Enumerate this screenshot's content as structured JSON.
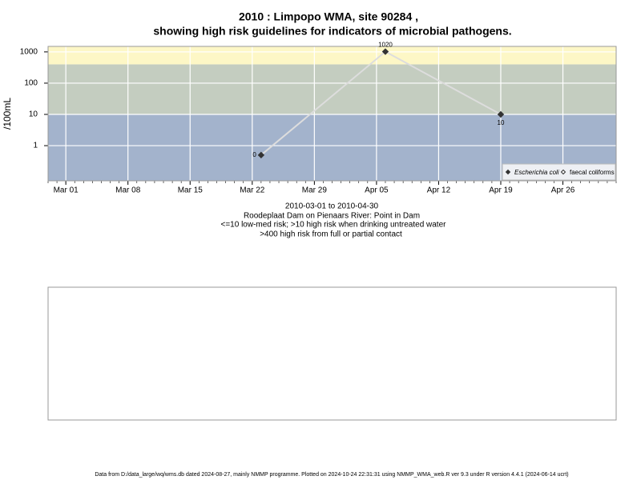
{
  "chart_data": {
    "type": "line",
    "title": "2010 : Limpopo WMA, site 90284 ,",
    "title_line2": "showing high risk guidelines for indicators of microbial pathogens.",
    "y_label": "/100mL",
    "subtitle": [
      "2010-03-01 to 2010-04-30",
      "Roodeplaat Dam on Pienaars River: Point in Dam",
      "<=10 low-med risk; >10 high risk when drinking untreated water",
      ">400 high risk from full or partial contact"
    ],
    "footer": "Data from D:/data_large/wq/wms.db dated 2024-08-27, mainly NMMP programme. Plotted on 2024-10-24 22:31:31 using NMMP_WMA_web.R ver 9.3 under R version 4.4.1 (2024-06-14 ucrt)",
    "x": [
      "Mar 23",
      "Apr 06",
      "Apr 19"
    ],
    "series": [
      {
        "name": "Escherichia coli",
        "color": "#333333",
        "line_color": "#dddddd",
        "values": [
          0.5,
          1020,
          10
        ],
        "value_labels": [
          "0",
          "1020",
          "10"
        ]
      },
      {
        "name": "faecal coliforms",
        "color": "#333333",
        "values": [
          null,
          null,
          null
        ]
      }
    ],
    "xlim": [
      "Feb 27",
      "May 02"
    ],
    "xticks": [
      "Mar 01",
      "Mar 08",
      "Mar 15",
      "Mar 22",
      "Mar 29",
      "Apr 05",
      "Apr 12",
      "Apr 19",
      "Apr 26"
    ],
    "ylim": [
      0.075,
      1500
    ],
    "yticks": [
      1,
      10,
      100,
      1000
    ],
    "log_y": true,
    "grid": true,
    "legend": "bottom-right",
    "bands": [
      {
        "from": 0.075,
        "to": 10,
        "color": "#a3b3cc"
      },
      {
        "from": 10,
        "to": 400,
        "color": "#c4cdc0"
      },
      {
        "from": 400,
        "to": 1500,
        "color": "#fdf7c6"
      }
    ]
  }
}
